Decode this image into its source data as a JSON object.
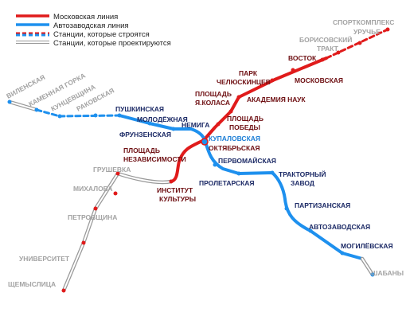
{
  "legend": [
    "Московская линия",
    "Автозаводская линия",
    "Станции, которые строятся",
    "Станции, которые проектируются"
  ],
  "stations": [
    [
      "СПОРТКОМПЛЕКС"
    ],
    [
      "УРУЧЬЕ"
    ],
    [
      "БОРИСОВСКИЙ",
      "ТРАКТ"
    ],
    [
      "ВОСТОК"
    ],
    [
      "ПАРК",
      "ЧЕЛЮСКИНЦЕВ"
    ],
    [
      "МОСКОВСКАЯ"
    ],
    [
      "ПЛОЩАДЬ",
      "Я.КОЛАСА"
    ],
    [
      "АКАДЕМИЯ НАУК"
    ],
    [
      "ПЛОЩАДЬ",
      "ПОБЕДЫ"
    ],
    [
      "ОКТЯБРЬСКАЯ"
    ],
    [
      "ПЛОЩАДЬ",
      "НЕЗАВИСИМОСТИ"
    ],
    [
      "ИНСТИТУТ",
      "КУЛЬТУРЫ"
    ],
    [
      "ГРУШЕВКА"
    ],
    [
      "МИХАЛОВА"
    ],
    [
      "ПЕТРОВЩИНА"
    ],
    [
      "УНИВЕРСИТЕТ"
    ],
    [
      "ЩЕМЫСЛИЦА"
    ],
    [
      "ВИЛЕНСКАЯ"
    ],
    [
      "КАМЕННАЯ ГОРКА"
    ],
    [
      "КУНЦЕВЩИНА"
    ],
    [
      "РАКОВСКАЯ"
    ],
    [
      "ПУШКИНСКАЯ"
    ],
    [
      "МОЛОДЁЖНАЯ"
    ],
    [
      "ФРУНЗЕНСКАЯ"
    ],
    [
      "НЕМИГА"
    ],
    [
      "КУПАЛОВСКАЯ"
    ],
    [
      "ПЕРВОМАЙСКАЯ"
    ],
    [
      "ПРОЛЕТАРСКАЯ"
    ],
    [
      "ТРАКТОРНЫЙ",
      "ЗАВОД"
    ],
    [
      "ПАРТИЗАНСКАЯ"
    ],
    [
      "АВТОЗАВОДСКАЯ"
    ],
    [
      "МОГИЛЁВСКАЯ"
    ],
    [
      "ШАБАНЫ"
    ]
  ]
}
